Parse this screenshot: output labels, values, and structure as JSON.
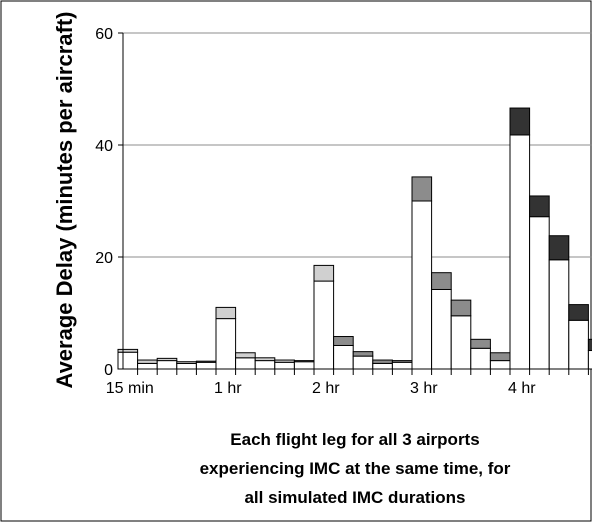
{
  "chart_data": {
    "type": "bar",
    "stacked": true,
    "ylabel": "Average Delay (minutes per aircraft)",
    "xlabel_lines": [
      "Each flight leg for all 3 airports",
      "experiencing IMC at the same time, for",
      "all simulated IMC durations"
    ],
    "ylim": [
      0,
      60
    ],
    "y_ticks": [
      "0",
      "20",
      "40",
      "60"
    ],
    "grid": true,
    "x_tick_labels": [
      {
        "label": "15 min",
        "at_bar": 0
      },
      {
        "label": "1 hr",
        "at_bar": 5
      },
      {
        "label": "2 hr",
        "at_bar": 10
      },
      {
        "label": "3 hr",
        "at_bar": 15
      },
      {
        "label": "4 hr",
        "at_bar": 20
      }
    ],
    "series_colors": [
      "#ffffff",
      "#d0d0d0",
      "#8c8c8c",
      "#333333"
    ],
    "bars": [
      {
        "base": 3.0,
        "extra": 0.5,
        "color_index": 1
      },
      {
        "base": 1.0,
        "extra": 0.6,
        "color_index": 1
      },
      {
        "base": 1.5,
        "extra": 0.4,
        "color_index": 1
      },
      {
        "base": 1.0,
        "extra": 0.3,
        "color_index": 1
      },
      {
        "base": 1.2,
        "extra": 0.2,
        "color_index": 1
      },
      {
        "base": 9.0,
        "extra": 2.0,
        "color_index": 1
      },
      {
        "base": 2.0,
        "extra": 0.9,
        "color_index": 1
      },
      {
        "base": 1.5,
        "extra": 0.5,
        "color_index": 1
      },
      {
        "base": 1.2,
        "extra": 0.4,
        "color_index": 1
      },
      {
        "base": 1.3,
        "extra": 0.2,
        "color_index": 1
      },
      {
        "base": 15.7,
        "extra": 2.8,
        "color_index": 1
      },
      {
        "base": 4.2,
        "extra": 1.6,
        "color_index": 2
      },
      {
        "base": 2.3,
        "extra": 0.8,
        "color_index": 2
      },
      {
        "base": 1.0,
        "extra": 0.6,
        "color_index": 2
      },
      {
        "base": 1.2,
        "extra": 0.3,
        "color_index": 2
      },
      {
        "base": 30.0,
        "extra": 4.3,
        "color_index": 2
      },
      {
        "base": 14.2,
        "extra": 3.0,
        "color_index": 2
      },
      {
        "base": 9.5,
        "extra": 2.8,
        "color_index": 2
      },
      {
        "base": 3.7,
        "extra": 1.6,
        "color_index": 2
      },
      {
        "base": 1.5,
        "extra": 1.4,
        "color_index": 2
      },
      {
        "base": 41.8,
        "extra": 4.8,
        "color_index": 3
      },
      {
        "base": 27.2,
        "extra": 3.7,
        "color_index": 3
      },
      {
        "base": 19.5,
        "extra": 4.3,
        "color_index": 3
      },
      {
        "base": 8.7,
        "extra": 2.8,
        "color_index": 3
      },
      {
        "base": 3.3,
        "extra": 2.0,
        "color_index": 3
      }
    ]
  }
}
